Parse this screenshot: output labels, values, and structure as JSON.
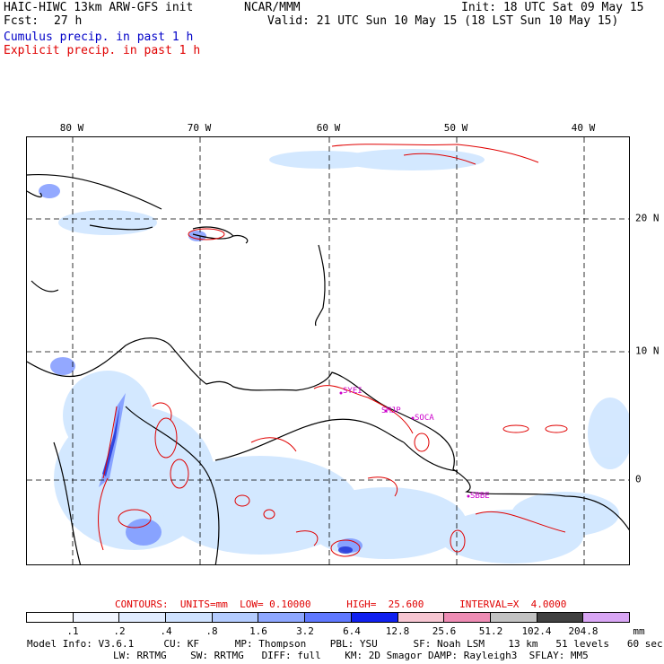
{
  "header": {
    "model_title": "HAIC-HIWC 13km ARW-GFS init",
    "org": "NCAR/MMM",
    "init": "Init: 18 UTC Sat 09 May 15",
    "fcst_label": "Fcst:",
    "fcst_value": "27 h",
    "valid": "Valid: 21 UTC Sun 10 May 15 (18 LST Sun 10 May 15)",
    "line_cumulus": "Cumulus precip. in past 1 h",
    "line_explicit": "Explicit precip. in past 1 h"
  },
  "map": {
    "lon_labels": [
      "80 W",
      "70 W",
      "60 W",
      "50 W",
      "40 W"
    ],
    "lat_labels": [
      "20 N",
      "10 N",
      "0"
    ],
    "stations": [
      "SYEI",
      "SMJP",
      "SOCA",
      "SBBE"
    ],
    "colors": {
      "grid": "#000000",
      "coast": "#000000",
      "explicit_contour": "#e00000",
      "cumulus_light": "#cfe6ff",
      "cumulus_mid": "#6f8cff",
      "cumulus_dark": "#1a2dd6",
      "station_label": "#cc00cc"
    }
  },
  "contours": {
    "label": "CONTOURS:  UNITS=mm  LOW= 0.10000      HIGH=  25.600      INTERVAL=X  4.0000"
  },
  "colorbar": {
    "ticks": [
      ".1",
      ".2",
      ".4",
      ".8",
      "1.6",
      "3.2",
      "6.4",
      "12.8",
      "25.6",
      "51.2",
      "102.4",
      "204.8"
    ],
    "unit": "mm",
    "colors": [
      "#ffffff",
      "#f2f6ff",
      "#e1ecff",
      "#cfe2ff",
      "#b4ccff",
      "#8ea7ff",
      "#5f78ff",
      "#1020f0",
      "#f7c6d2",
      "#ee8cb4",
      "#c2c2c2",
      "#404040",
      "#d9a6f5"
    ]
  },
  "footer": {
    "line1": "Model Info: V3.6.1     CU: KF      MP: Thompson    PBL: YSU      SF: Noah LSM    13 km   51 levels   60 sec",
    "line2": "LW: RRTMG    SW: RRTMG   DIFF: full    KM: 2D Smagor DAMP: Rayleigh3  SFLAY: MM5"
  }
}
